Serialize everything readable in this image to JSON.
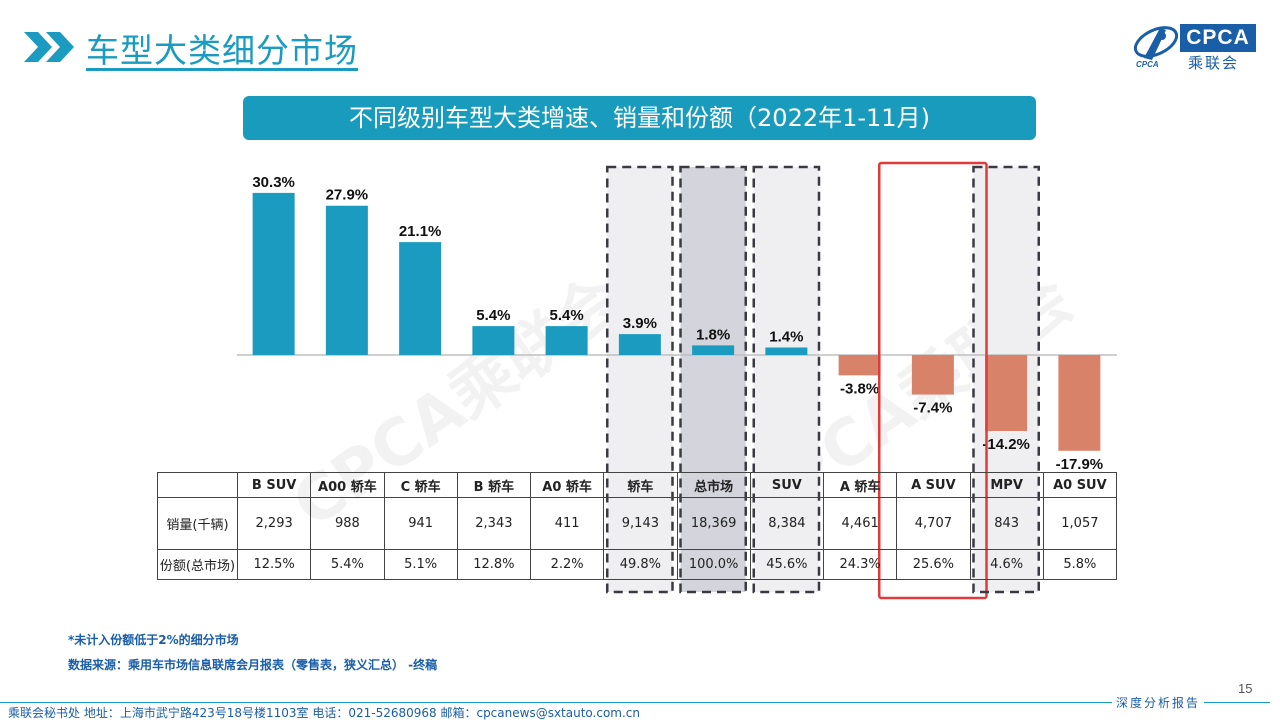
{
  "header": {
    "title": "车型大类细分市场",
    "logo_text": "CPCA",
    "logo_cn": "乘联会",
    "logo_sub": "CPCA"
  },
  "banner": "不同级别车型大类增速、销量和份额（2022年1-11月)",
  "chart_data": {
    "type": "bar",
    "categories": [
      "B SUV",
      "A00 轿车",
      "C 轿车",
      "B 轿车",
      "A0 轿车",
      "轿车",
      "总市场",
      "SUV",
      "A 轿车",
      "A SUV",
      "MPV",
      "A0 SUV"
    ],
    "values": [
      30.3,
      27.9,
      21.1,
      5.4,
      5.4,
      3.9,
      1.8,
      1.4,
      -3.8,
      -7.4,
      -14.2,
      -17.9
    ],
    "labels": [
      "30.3%",
      "27.9%",
      "21.1%",
      "5.4%",
      "5.4%",
      "3.9%",
      "1.8%",
      "1.4%",
      "-3.8%",
      "-7.4%",
      "-14.2%",
      "-17.9%"
    ],
    "positive_color": "#1a9bbf",
    "negative_color": "#d9826a",
    "dashed_highlight": [
      "轿车",
      "总市场",
      "SUV",
      "MPV"
    ],
    "shaded_highlight": [
      "总市场"
    ],
    "red_highlight": [
      "A SUV"
    ],
    "ylim": [
      -20,
      35
    ]
  },
  "table": {
    "rows": [
      {
        "label": "销量(千辆)",
        "cells": [
          "2,293",
          "988",
          "941",
          "2,343",
          "411",
          "9,143",
          "18,369",
          "8,384",
          "4,461",
          "4,707",
          "843",
          "1,057"
        ]
      },
      {
        "label": "份额(总市场)",
        "cells": [
          "12.5%",
          "5.4%",
          "5.1%",
          "12.8%",
          "2.2%",
          "49.8%",
          "100.0%",
          "45.6%",
          "24.3%",
          "25.6%",
          "4.6%",
          "5.8%"
        ]
      }
    ]
  },
  "notes": {
    "note1": "*未计入份额低于2%的细分市场",
    "note2": "数据来源：乘用车市场信息联席会月报表（零售表，狭义汇总） -终稿"
  },
  "footer": {
    "address": "乘联会秘书处   地址：上海市武宁路423号18号楼1103室  电话：021-52680968   邮箱：cpcanews@sxtauto.com.cn",
    "right": "深度分析报告",
    "page": "15"
  },
  "watermark": "CPCA乘联会"
}
